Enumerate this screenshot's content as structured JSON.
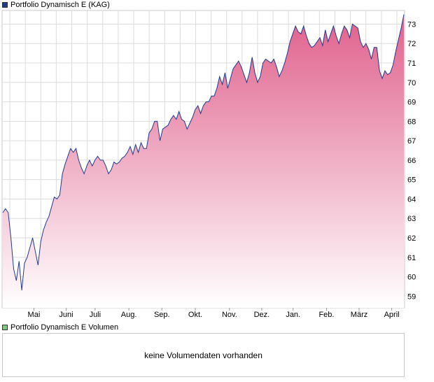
{
  "legend": {
    "price_label": "Portfolio Dynamisch E (KAG)",
    "price_color": "#1f3b8c",
    "volume_label": "Portfolio Dynamisch E Volumen",
    "volume_color": "#7cc97c"
  },
  "volume_panel": {
    "message": "keine Volumendaten vorhanden"
  },
  "chart_data": {
    "type": "area",
    "title": "",
    "series": [
      {
        "name": "Portfolio Dynamisch E (KAG)",
        "values": [
          63.3,
          63.5,
          63.3,
          62.0,
          60.4,
          59.8,
          60.8,
          59.3,
          60.7,
          61.0,
          61.5,
          62.0,
          61.3,
          60.6,
          61.8,
          62.4,
          62.8,
          63.1,
          63.6,
          64.1,
          64.0,
          64.2,
          65.3,
          65.8,
          66.2,
          66.6,
          66.4,
          66.6,
          66.0,
          65.6,
          65.3,
          65.7,
          66.0,
          65.7,
          66.0,
          66.2,
          66.0,
          66.0,
          65.7,
          65.3,
          65.5,
          65.9,
          65.8,
          65.9,
          66.1,
          66.2,
          66.4,
          66.7,
          66.3,
          66.8,
          66.4,
          66.9,
          66.6,
          66.6,
          67.4,
          67.6,
          68.0,
          68.0,
          67.0,
          67.6,
          67.7,
          67.8,
          68.1,
          68.3,
          68.1,
          68.5,
          68.1,
          68.0,
          67.6,
          67.9,
          68.2,
          68.6,
          68.8,
          68.4,
          68.8,
          69.0,
          69.0,
          69.3,
          69.3,
          69.7,
          70.3,
          69.9,
          70.5,
          69.7,
          70.2,
          70.7,
          70.9,
          71.1,
          70.8,
          70.4,
          70.0,
          70.5,
          71.3,
          70.5,
          70.0,
          70.3,
          71.0,
          71.2,
          71.1,
          71.0,
          71.2,
          70.8,
          70.3,
          70.6,
          71.0,
          71.5,
          72.1,
          72.5,
          72.9,
          72.6,
          72.5,
          72.9,
          72.4,
          72.0,
          71.8,
          71.9,
          72.1,
          72.3,
          71.9,
          72.7,
          72.1,
          72.5,
          72.9,
          72.4,
          72.0,
          72.5,
          72.9,
          72.7,
          72.3,
          73.0,
          72.9,
          72.8,
          72.1,
          71.8,
          72.0,
          71.7,
          71.2,
          71.8,
          71.8,
          70.6,
          70.2,
          70.6,
          70.4,
          70.5,
          70.9,
          71.6,
          72.2,
          72.8,
          73.5
        ]
      }
    ],
    "x_month_labels": [
      "Mai",
      "Juni",
      "Juli",
      "Aug.",
      "Sep.",
      "Okt.",
      "Nov.",
      "Dez.",
      "Jan.",
      "Feb.",
      "März",
      "April"
    ],
    "y_ticks": [
      59,
      60,
      61,
      62,
      63,
      64,
      65,
      66,
      67,
      68,
      69,
      70,
      71,
      72,
      73
    ],
    "ylim": [
      58.4,
      73.7
    ],
    "grid": true,
    "y_axis_side": "right",
    "line_color": "#1f3b8c",
    "fill_top_color": "#e0608c",
    "fill_bottom_color": "#ffffff",
    "grid_color": "#dcdcdc"
  }
}
